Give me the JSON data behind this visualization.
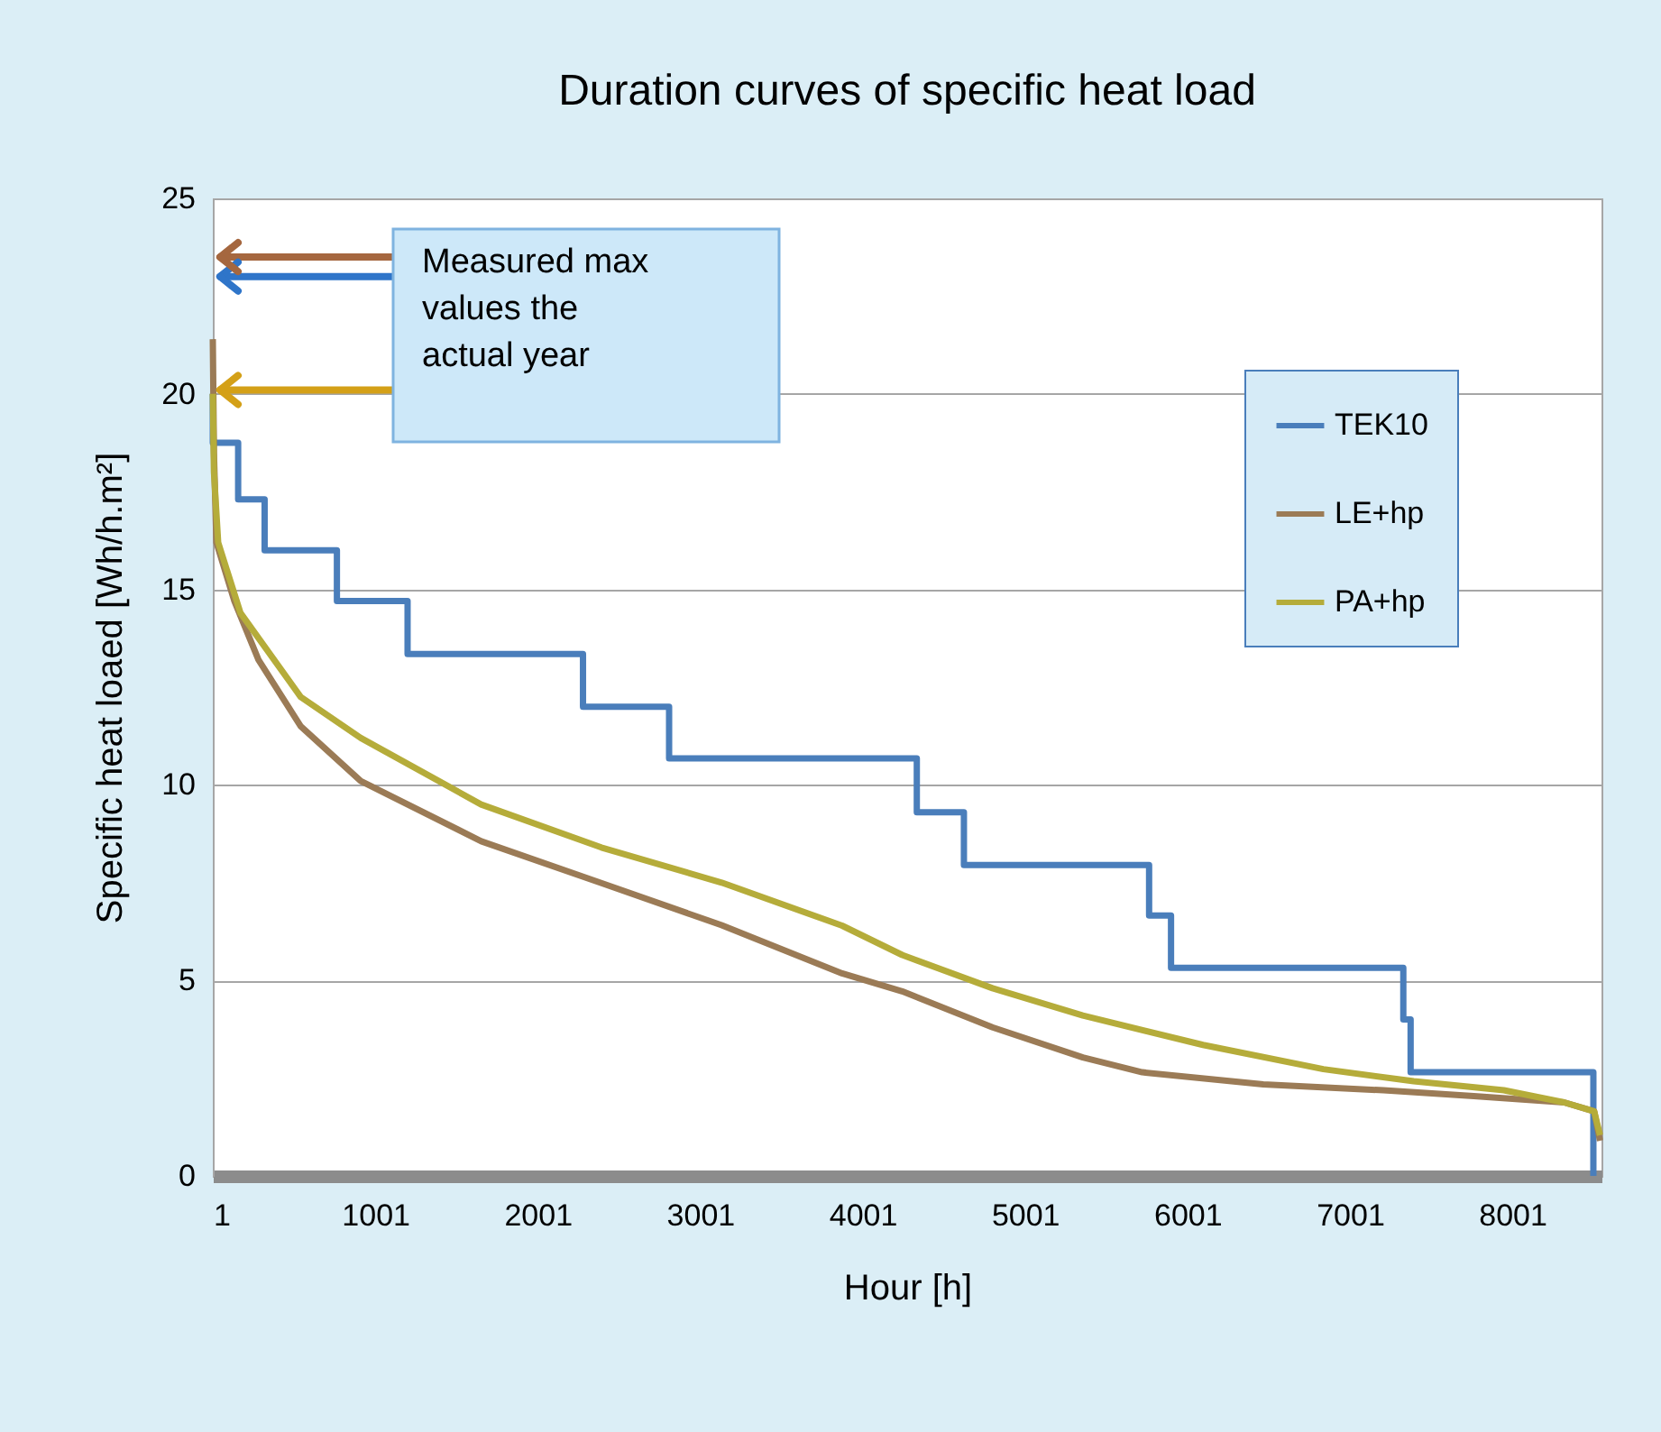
{
  "chart_data": {
    "type": "line",
    "line_style": "solid",
    "title": "Duration curves of specific heat load",
    "xlabel": "Hour [h]",
    "ylabel": "Specific heat loaed [Wh/h.m²]",
    "xlim": [
      1,
      8550
    ],
    "xticks": [
      1,
      1001,
      2001,
      3001,
      4001,
      5001,
      6001,
      7001,
      8001
    ],
    "ylim": [
      0,
      25
    ],
    "yticks": [
      0,
      5,
      10,
      15,
      20,
      25
    ],
    "grid": "y",
    "legend": "right",
    "series": [
      {
        "name": "TEK10",
        "type": "step",
        "color": "#4a7ebb",
        "x": [
          1,
          1,
          157,
          320,
          765,
          1200,
          2280,
          2810,
          4335,
          4625,
          5765,
          5900,
          7330,
          7375,
          8500
        ],
        "values": [
          20,
          18.75,
          17.3,
          16.0,
          14.7,
          13.35,
          12.0,
          10.68,
          9.3,
          7.95,
          6.66,
          5.32,
          4.0,
          2.65,
          0
        ]
      },
      {
        "name": "LE+hp",
        "type": "line",
        "color": "#9b7b56",
        "x": [
          1,
          8,
          23,
          134,
          282,
          542,
          912,
          1653,
          2393,
          3134,
          3875,
          4245,
          4801,
          5357,
          5723,
          6468,
          7208,
          7764,
          8320,
          8505,
          8541
        ],
        "values": [
          21.4,
          18.5,
          16.2,
          14.7,
          13.2,
          11.5,
          10.1,
          8.56,
          7.49,
          6.41,
          5.18,
          4.72,
          3.8,
          3.03,
          2.65,
          2.34,
          2.19,
          2.04,
          1.88,
          1.65,
          0.9
        ]
      },
      {
        "name": "PA+hp",
        "type": "line",
        "color": "#b5ac3a",
        "x": [
          1,
          8,
          34,
          171,
          542,
          912,
          1653,
          2393,
          3134,
          3875,
          4245,
          4801,
          5357,
          6097,
          6838,
          7394,
          7949,
          8320,
          8505,
          8541
        ],
        "values": [
          20,
          18.0,
          16.2,
          14.4,
          12.25,
          11.2,
          9.5,
          8.4,
          7.5,
          6.4,
          5.65,
          4.8,
          4.1,
          3.35,
          2.73,
          2.42,
          2.19,
          1.88,
          1.65,
          1.04
        ]
      }
    ],
    "ref_lines": [
      {
        "axis": "y",
        "value": 23.5,
        "color": "#a5673f"
      },
      {
        "axis": "y",
        "value": 23.0,
        "color": "#2f75c9"
      },
      {
        "axis": "y",
        "value": 20.1,
        "color": "#d4a017"
      }
    ],
    "annotations": [
      "Measured max values the actual year"
    ]
  }
}
